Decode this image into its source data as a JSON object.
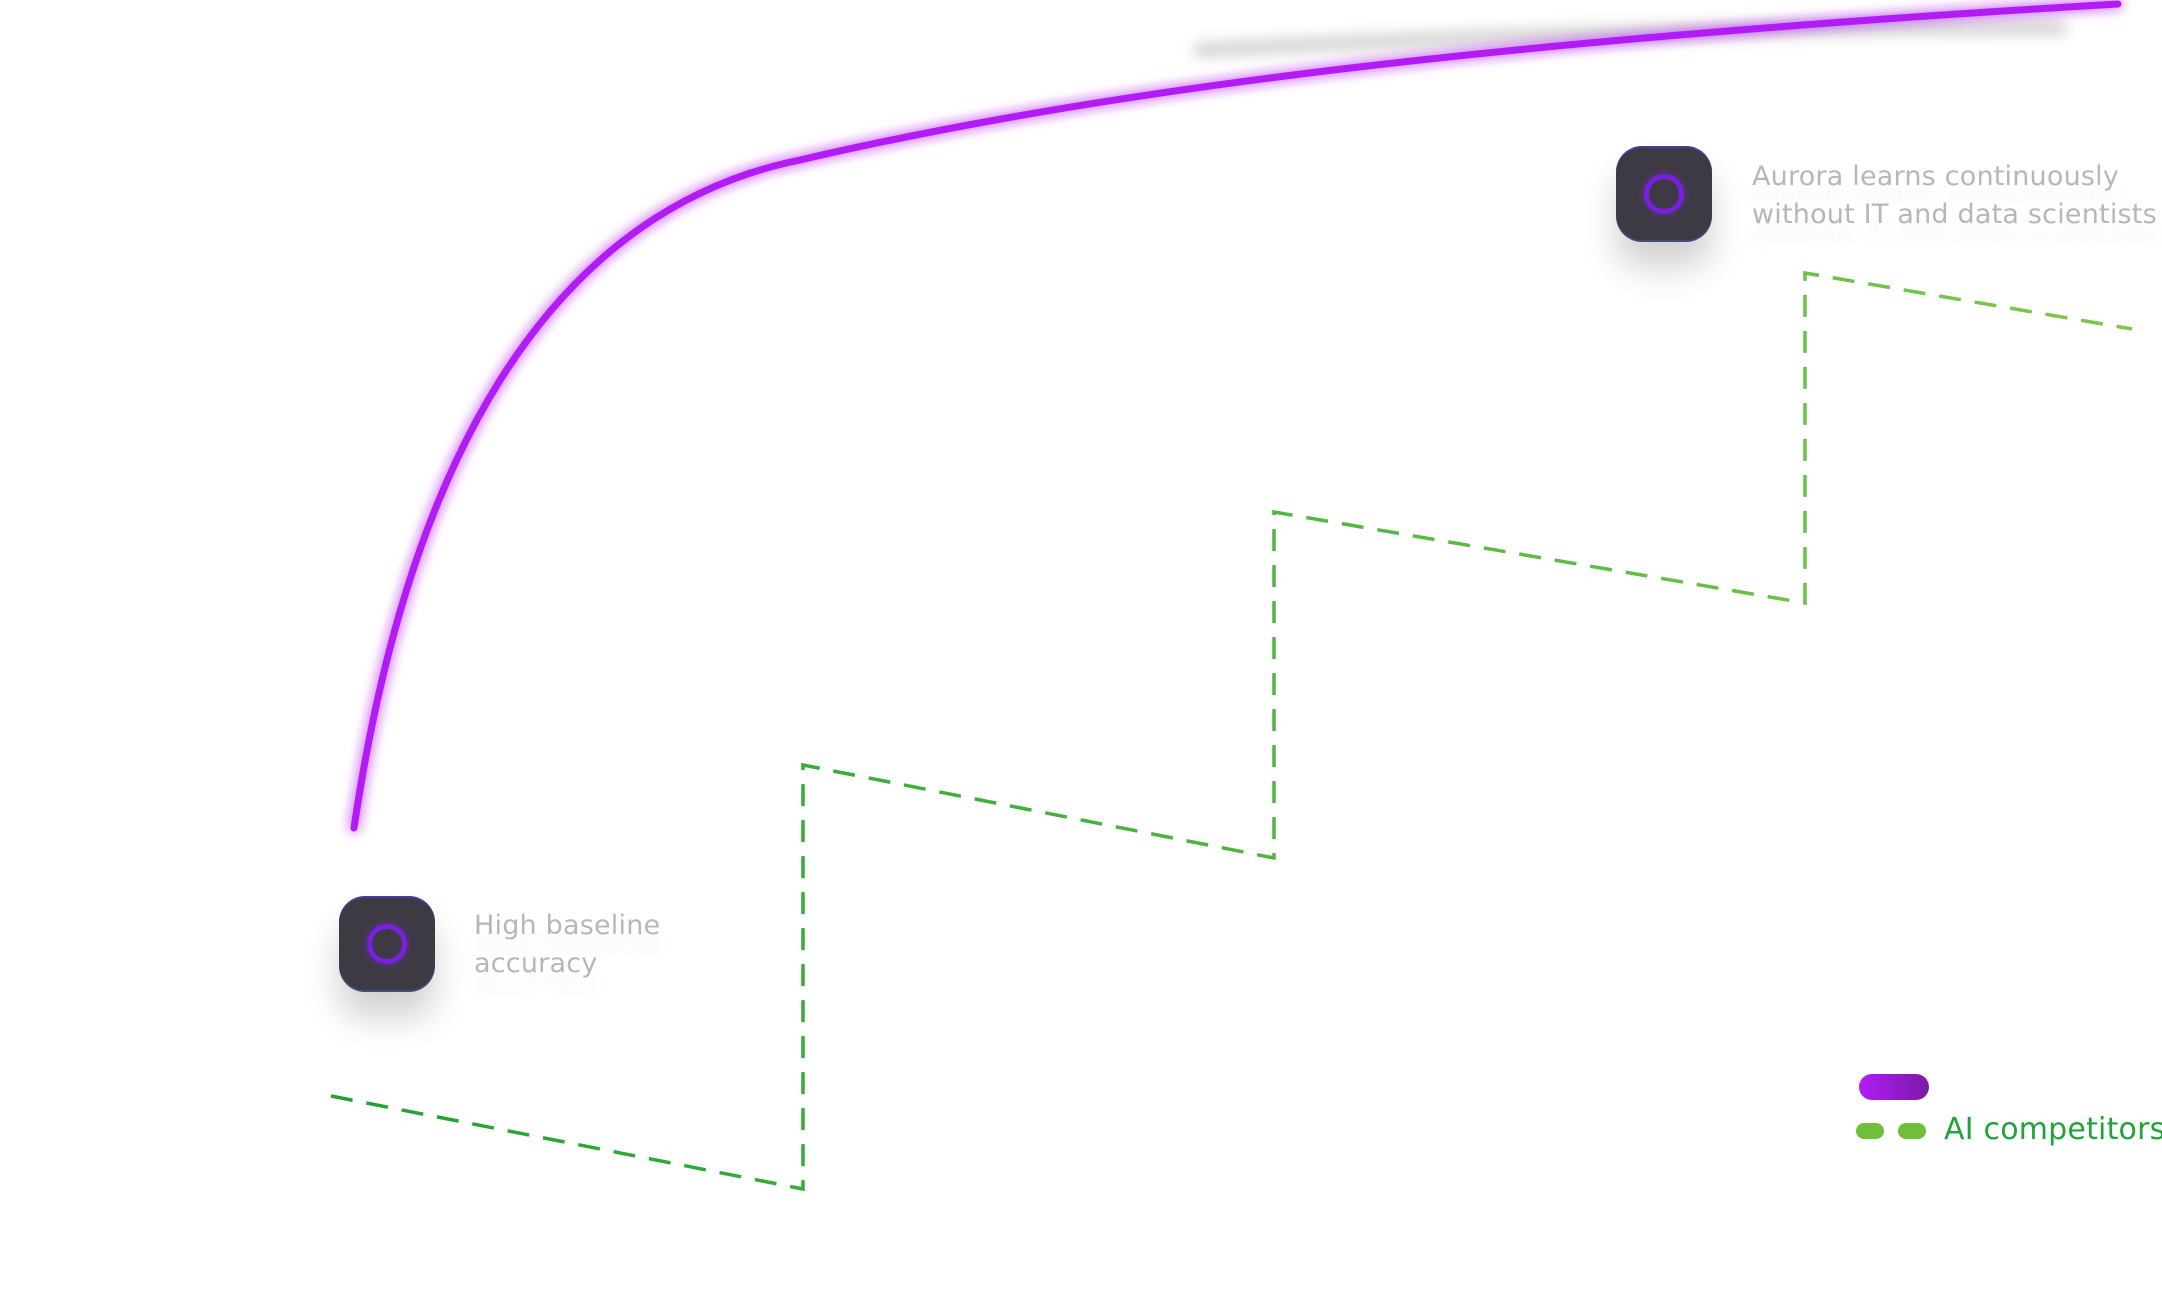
{
  "annotations": {
    "baseline": {
      "line1": "High baseline",
      "line2": "accuracy"
    },
    "continuous": {
      "line1": "Aurora learns continuously",
      "line2": "without IT and data scientists"
    }
  },
  "legend": {
    "competitors_label": "AI competitors"
  },
  "colors": {
    "aurora_line": "#b11cf5",
    "competitor_line": "#22a33a",
    "icon_bg": "#3e3a44",
    "icon_ring": "#7a1fe0",
    "annotation_text": "#b7b7b9"
  },
  "icons": {
    "node": "aurora-ring-icon"
  }
}
